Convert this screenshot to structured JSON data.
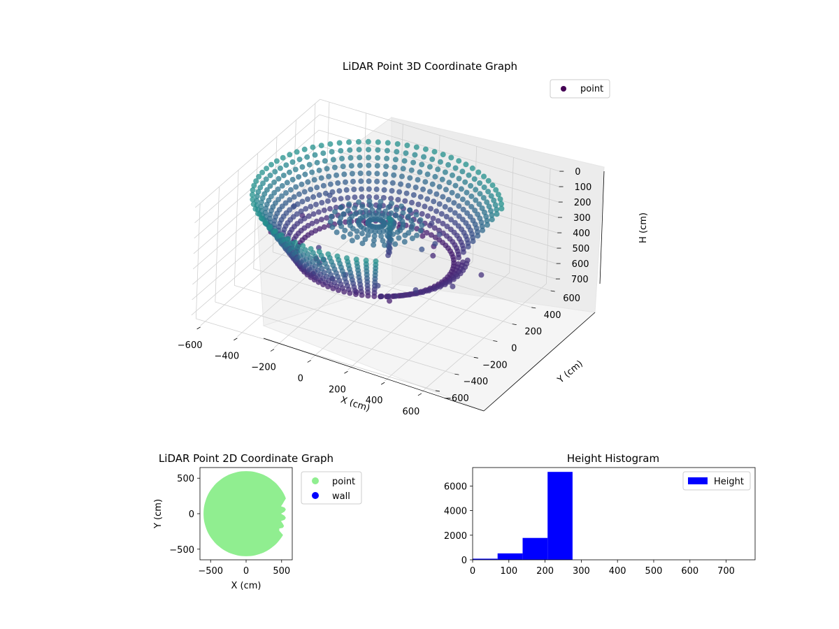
{
  "chart_data": [
    {
      "type": "scatter3d",
      "title": "LiDAR Point 3D Coordinate Graph",
      "xlabel": "X (cm)",
      "ylabel": "Y (cm)",
      "zlabel": "H (cm)",
      "xticks": [
        "−600",
        "−400",
        "−200",
        "0",
        "200",
        "400",
        "600"
      ],
      "yticks": [
        "−600",
        "−400",
        "−200",
        "0",
        "200",
        "400",
        "600"
      ],
      "zticks": [
        "0",
        "100",
        "200",
        "300",
        "400",
        "500",
        "600",
        "700"
      ],
      "xlim": [
        -650,
        650
      ],
      "ylim": [
        -650,
        650
      ],
      "zlim": [
        0,
        750
      ],
      "z_inverted": true,
      "grid": true,
      "colormap": "viridis",
      "legend": {
        "placement": "upper-right",
        "entries": [
          {
            "label": "point",
            "color": "#440154"
          }
        ]
      },
      "structure": {
        "description_values": "ring-shaped wall of points around origin",
        "ring_radius_range": [
          380,
          600
        ],
        "ring_height_range": [
          80,
          450
        ],
        "inner_disc_radius": 250,
        "inner_disc_height": 220,
        "column_x": 100,
        "column_y": -60,
        "column_height_range": [
          120,
          360
        ]
      }
    },
    {
      "type": "scatter",
      "title": "LiDAR Point 2D Coordinate Graph",
      "xlabel": "X (cm)",
      "ylabel": "Y (cm)",
      "xticks": [
        "−500",
        "0",
        "500"
      ],
      "yticks": [
        "500",
        "0",
        "−500"
      ],
      "xlim": [
        -650,
        650
      ],
      "ylim": [
        -650,
        650
      ],
      "series": [
        {
          "name": "point",
          "color": "#90ee90",
          "shape": "disc",
          "radius": 600,
          "notch_angle_range_deg": [
            -30,
            20
          ]
        },
        {
          "name": "wall",
          "color": "#0000ff",
          "points": []
        }
      ],
      "legend": {
        "placement": "outside-right"
      }
    },
    {
      "type": "bar",
      "title": "Height Histogram",
      "xlabel": "",
      "ylabel": "",
      "xlim": [
        0,
        780
      ],
      "ylim": [
        0,
        7500
      ],
      "xticks": [
        "0",
        "100",
        "200",
        "300",
        "400",
        "500",
        "600",
        "700"
      ],
      "yticks": [
        "0",
        "2000",
        "4000",
        "6000"
      ],
      "bin_edges": [
        0,
        69,
        138,
        207,
        276,
        345,
        414,
        483,
        552,
        621,
        690
      ],
      "values": [
        90,
        520,
        1780,
        7150,
        0,
        0,
        0,
        0,
        0,
        2
      ],
      "series": [
        {
          "name": "Height",
          "color": "#0000ff"
        }
      ],
      "legend": {
        "placement": "upper-right"
      }
    }
  ]
}
